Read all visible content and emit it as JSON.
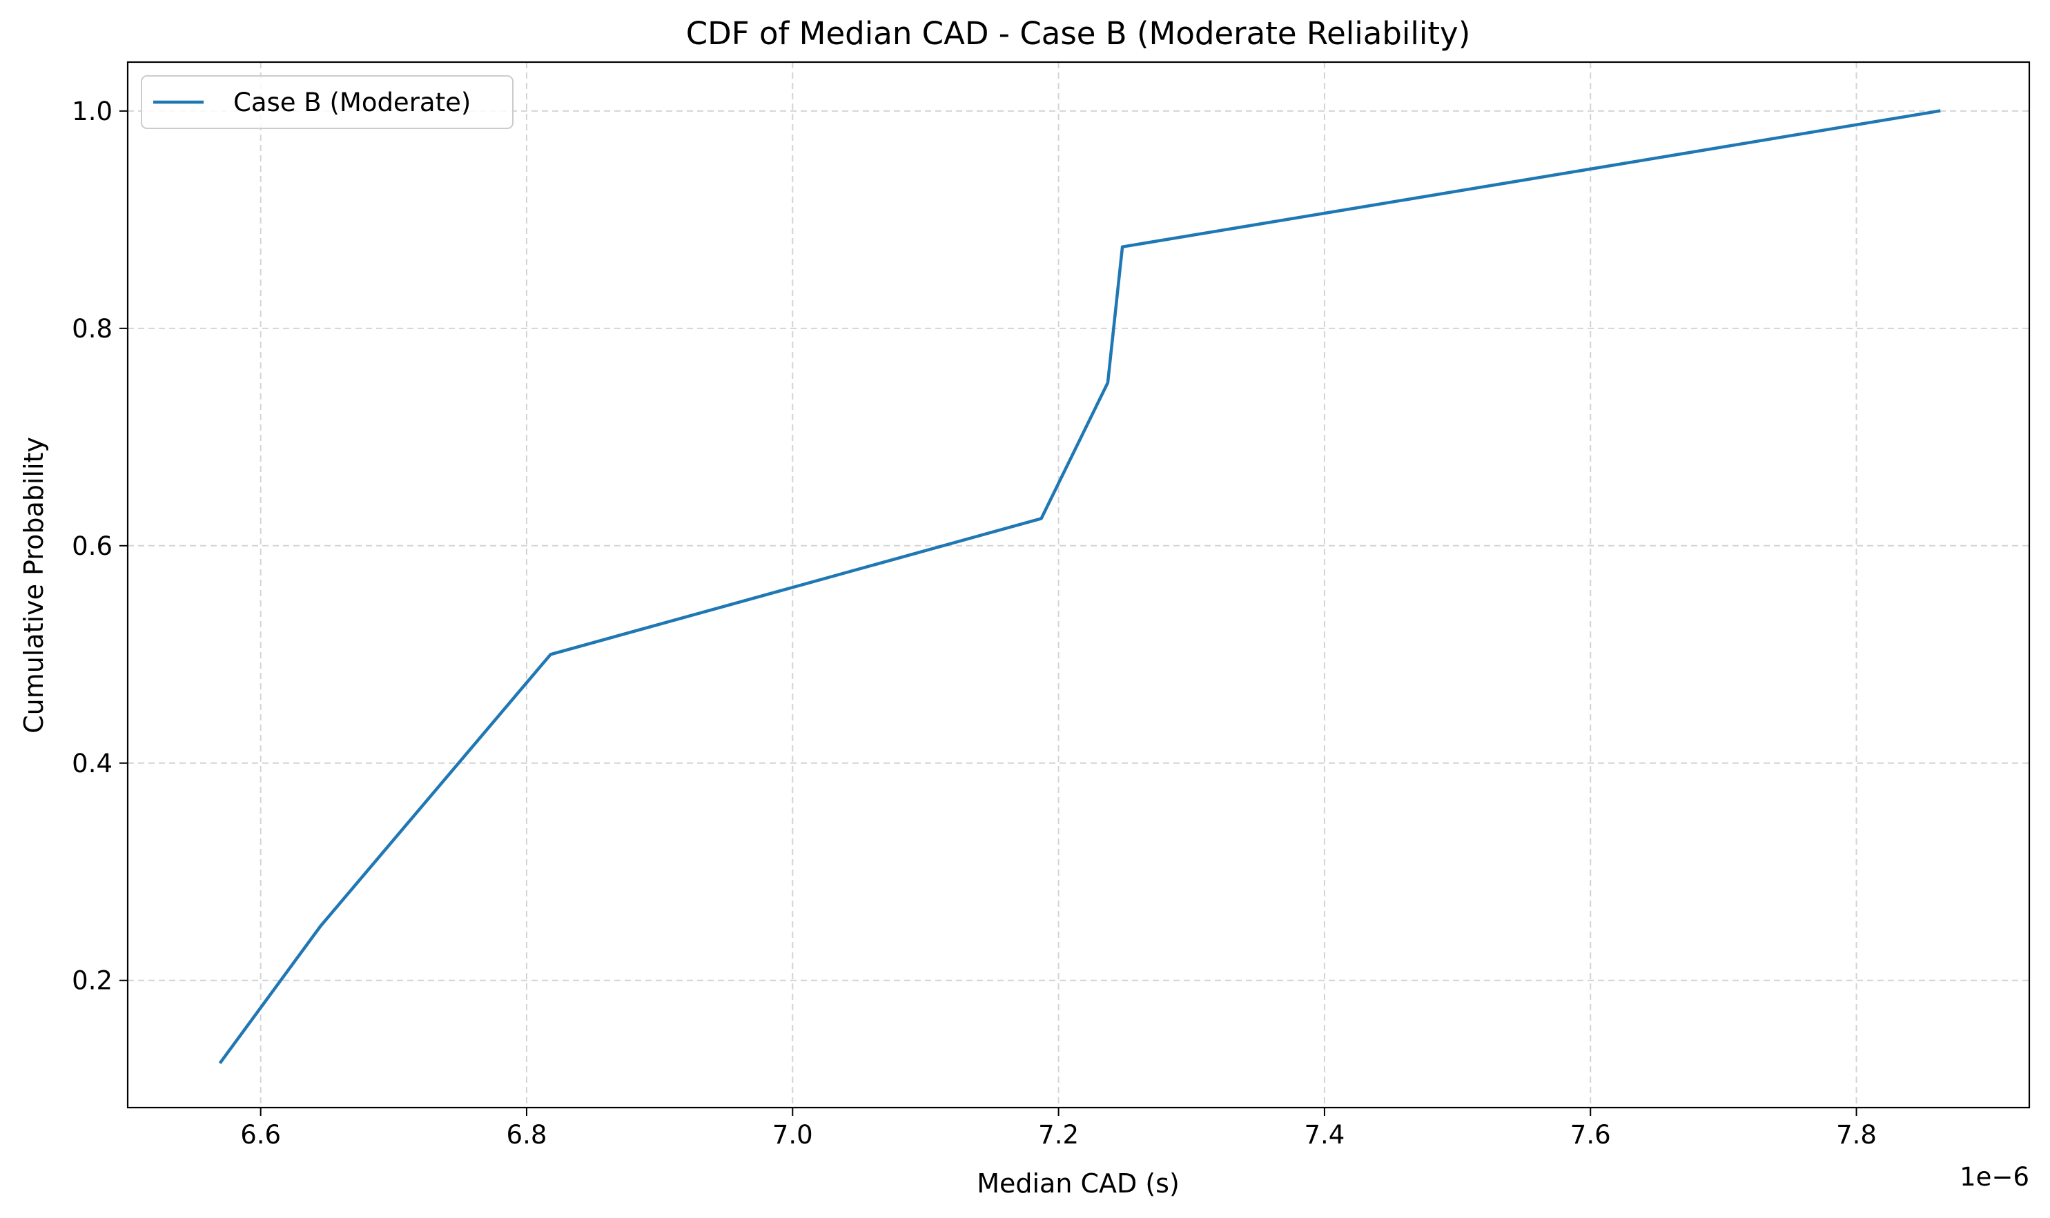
{
  "chart_data": {
    "type": "line",
    "title": "CDF of Median CAD - Case B (Moderate Reliability)",
    "xlabel": "Median CAD (s)",
    "ylabel": "Cumulative Probability",
    "x_offset_label": "1e−6",
    "xlim": [
      6.5,
      7.93
    ],
    "ylim": [
      0.083,
      1.045
    ],
    "x_ticks": [
      6.6,
      6.8,
      7.0,
      7.2,
      7.4,
      7.6,
      7.8
    ],
    "x_tick_labels": [
      "6.6",
      "6.8",
      "7.0",
      "7.2",
      "7.4",
      "7.6",
      "7.8"
    ],
    "y_ticks": [
      0.2,
      0.4,
      0.6,
      0.8,
      1.0
    ],
    "y_tick_labels": [
      "0.2",
      "0.4",
      "0.6",
      "0.8",
      "1.0"
    ],
    "grid": true,
    "legend_position": "top-left",
    "series": [
      {
        "name": "Case B (Moderate)",
        "color": "#1f77b4",
        "x": [
          6.57,
          6.645,
          6.818,
          7.187,
          7.237,
          7.248,
          7.862
        ],
        "y": [
          0.125,
          0.25,
          0.5,
          0.625,
          0.75,
          0.875,
          1.0
        ]
      }
    ]
  }
}
